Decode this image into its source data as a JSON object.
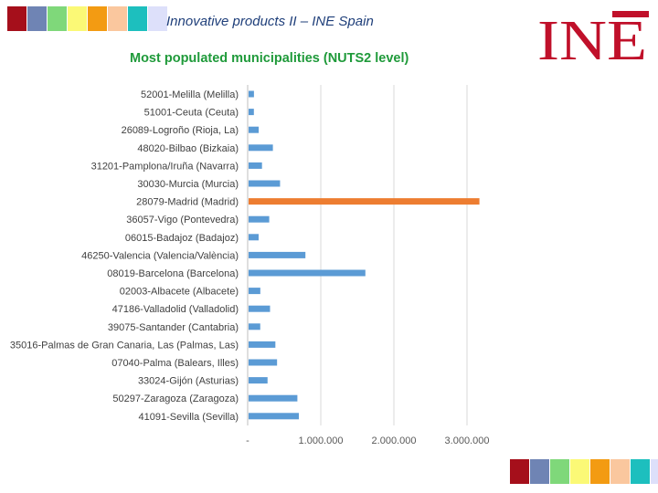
{
  "header": {
    "title": "Innovative products II – INE Spain",
    "logo_text": "INE",
    "swatch_colors": [
      "#a50f1b",
      "#6f84b4",
      "#7fd87a",
      "#fbf976",
      "#f39b12",
      "#fac79e",
      "#1dbfbe",
      "#dde0fa"
    ]
  },
  "chart_data": {
    "type": "bar",
    "orientation": "horizontal",
    "title": "Most populated municipalities (NUTS2 level)",
    "categories": [
      "52001-Melilla (Melilla)",
      "51001-Ceuta (Ceuta)",
      "26089-Logroño (Rioja, La)",
      "48020-Bilbao (Bizkaia)",
      "31201-Pamplona/Iruña (Navarra)",
      "30030-Murcia (Murcia)",
      "28079-Madrid (Madrid)",
      "36057-Vigo (Pontevedra)",
      "06015-Badajoz (Badajoz)",
      "46250-Valencia (Valencia/València)",
      "08019-Barcelona (Barcelona)",
      "02003-Albacete (Albacete)",
      "47186-Valladolid (Valladolid)",
      "39075-Santander (Cantabria)",
      "35016-Palmas de Gran Canaria, Las (Palmas, Las)",
      "07040-Palma (Balears, Illes)",
      "33024-Gijón (Asturias)",
      "50297-Zaragoza (Zaragoza)",
      "41091-Sevilla (Sevilla)"
    ],
    "values": [
      86000,
      85000,
      151000,
      345000,
      196000,
      443000,
      3170000,
      295000,
      150000,
      790000,
      1610000,
      173000,
      306000,
      172000,
      379000,
      402000,
      272000,
      680000,
      700000
    ],
    "highlight_index": 6,
    "bar_color": "#5b9bd5",
    "highlight_color": "#ed7d31",
    "xlim": [
      0,
      3000000
    ],
    "xticks": [
      0,
      1000000,
      2000000,
      3000000
    ],
    "xtick_labels": [
      "-",
      "1.000.000",
      "2.000.000",
      "3.000.000"
    ],
    "grid": true
  }
}
